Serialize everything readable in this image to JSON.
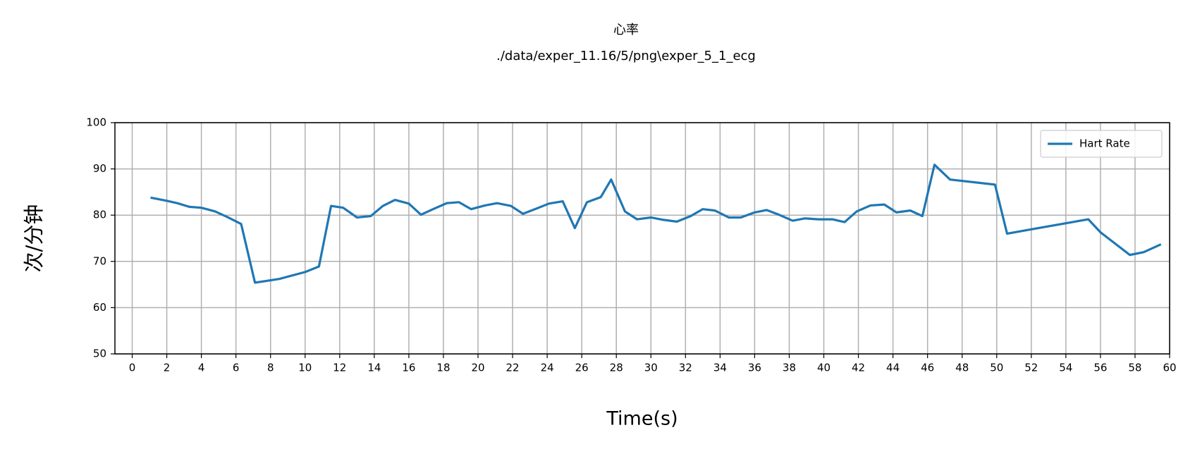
{
  "chart_data": {
    "type": "line",
    "title": "心率",
    "subtitle": "./data/exper_11.16/5/png\\exper_5_1_ecg",
    "x_label": "Time(s)",
    "y_label": "次/分钟",
    "x": [
      1.06,
      2.0,
      2.6,
      3.3,
      4.0,
      4.8,
      5.5,
      6.3,
      7.1,
      8.5,
      10.0,
      10.8,
      11.5,
      12.2,
      13.0,
      13.8,
      14.5,
      15.2,
      16.0,
      16.7,
      17.4,
      18.2,
      18.9,
      19.6,
      20.4,
      21.1,
      21.9,
      22.6,
      23.3,
      24.1,
      24.9,
      25.6,
      26.3,
      27.1,
      27.7,
      28.5,
      29.2,
      30.0,
      30.7,
      31.5,
      32.3,
      33.0,
      33.7,
      34.5,
      35.2,
      36.0,
      36.7,
      37.4,
      38.2,
      38.9,
      39.7,
      40.5,
      41.2,
      41.9,
      42.7,
      43.5,
      44.2,
      45.0,
      45.7,
      46.4,
      47.3,
      49.9,
      50.6,
      52.4,
      55.3,
      56.0,
      57.7,
      58.5,
      59.5
    ],
    "series": [
      {
        "name": "Hart Rate",
        "color": "#1f77b4",
        "values": [
          83.8,
          83.1,
          82.6,
          81.8,
          81.6,
          80.8,
          79.6,
          78.1,
          65.4,
          66.2,
          67.7,
          68.9,
          82.0,
          81.6,
          79.5,
          79.8,
          82.0,
          83.3,
          82.5,
          80.1,
          81.3,
          82.6,
          82.8,
          81.3,
          82.1,
          82.6,
          82.0,
          80.3,
          81.3,
          82.5,
          83.0,
          77.2,
          82.8,
          83.9,
          87.7,
          80.8,
          79.1,
          79.5,
          79.0,
          78.6,
          79.8,
          81.3,
          81.0,
          79.5,
          79.5,
          80.6,
          81.1,
          80.1,
          78.8,
          79.3,
          79.1,
          79.1,
          78.5,
          80.8,
          82.1,
          82.3,
          80.6,
          81.0,
          79.8,
          90.9,
          87.7,
          86.6,
          76.0,
          77.2,
          79.1,
          76.3,
          71.4,
          72.0,
          73.7
        ]
      }
    ],
    "xlim": [
      -1,
      60
    ],
    "ylim": [
      50,
      100
    ],
    "xticks": [
      0,
      2,
      4,
      6,
      8,
      10,
      12,
      14,
      16,
      18,
      20,
      22,
      24,
      26,
      28,
      30,
      32,
      34,
      36,
      38,
      40,
      42,
      44,
      46,
      48,
      50,
      52,
      54,
      56,
      58,
      60
    ],
    "yticks": [
      50,
      60,
      70,
      80,
      90,
      100
    ],
    "grid": true,
    "legend": "upper right"
  }
}
